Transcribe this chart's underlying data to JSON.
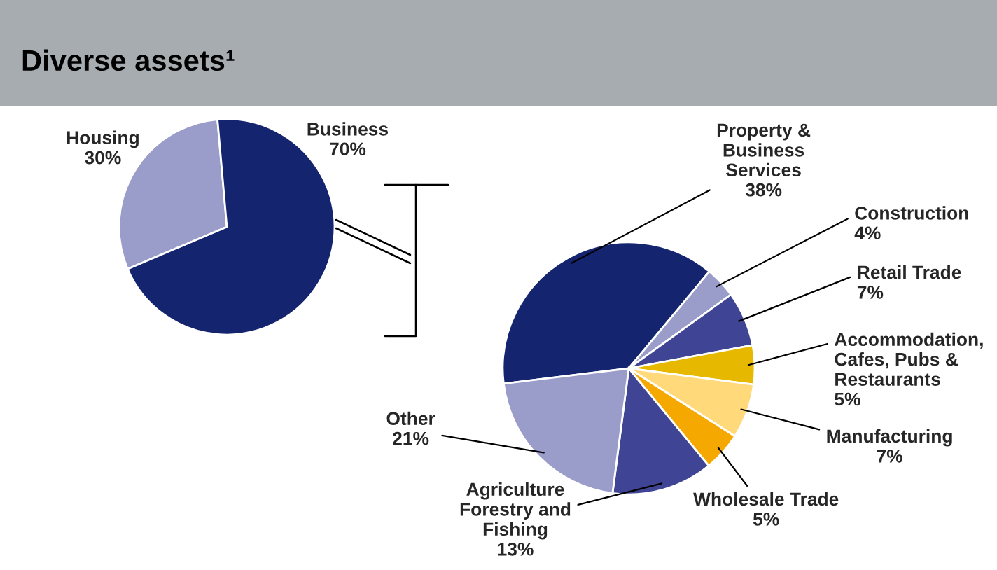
{
  "chart_data": [
    {
      "type": "pie",
      "title": "Diverse assets¹",
      "categories": [
        "Housing",
        "Business"
      ],
      "values": [
        30,
        70
      ],
      "colors": [
        "#9a9cca",
        "#14246e"
      ],
      "value_labels": [
        "30%",
        "70%"
      ],
      "legend": false
    },
    {
      "type": "pie",
      "categories": [
        "Property & Business Services",
        "Construction",
        "Retail Trade",
        "Accommodation, Cafes, Pubs & Restaurants",
        "Manufacturing",
        "Wholesale Trade",
        "Agriculture Forestry and Fishing",
        "Other"
      ],
      "values": [
        38,
        4,
        7,
        5,
        7,
        5,
        13,
        21
      ],
      "colors": [
        "#14246e",
        "#9a9cca",
        "#3f4594",
        "#e6b800",
        "#ffd97a",
        "#f5a800",
        "#3f4594",
        "#9a9cca"
      ],
      "value_labels": [
        "38%",
        "4%",
        "7%",
        "5%",
        "7%",
        "5%",
        "13%",
        "21%"
      ],
      "legend": false
    }
  ]
}
